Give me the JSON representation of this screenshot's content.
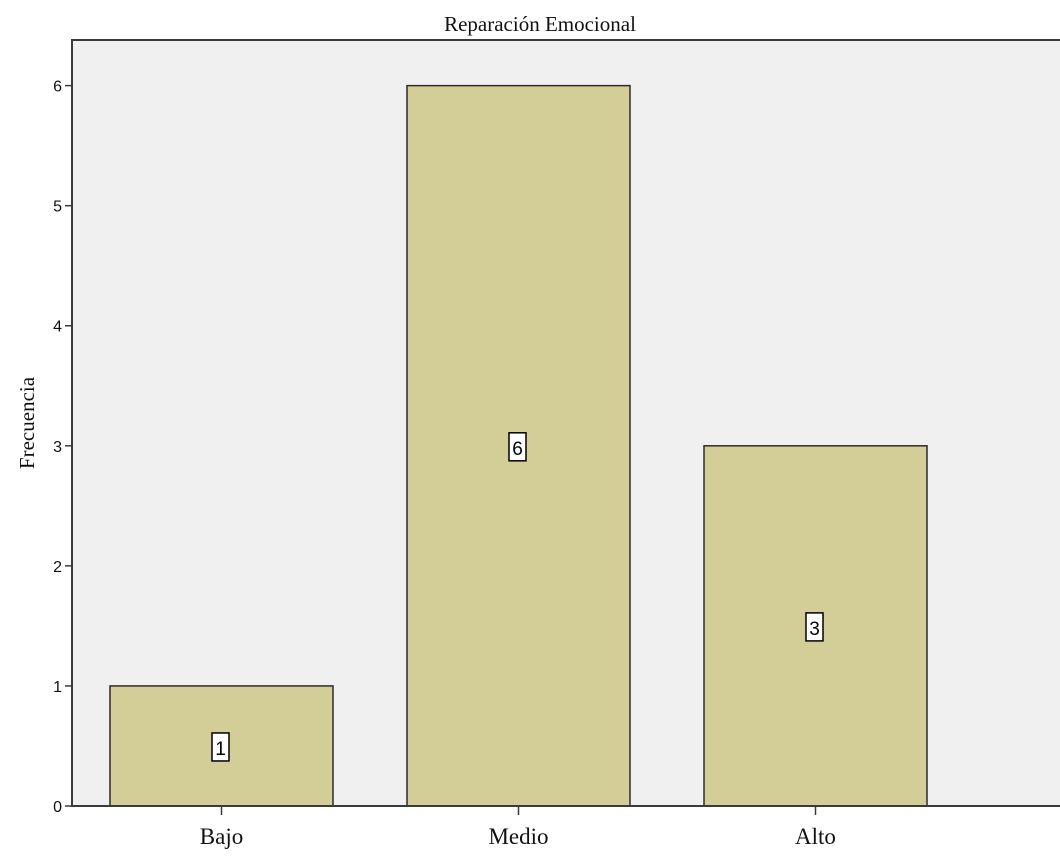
{
  "chart_data": {
    "type": "bar",
    "title": "Reparación  Emocional",
    "xlabel": "",
    "ylabel": "Frecuencia",
    "categories": [
      "Bajo",
      "Medio",
      "Alto"
    ],
    "values": [
      1,
      6,
      3
    ],
    "data_labels": [
      "1",
      "6",
      "3"
    ],
    "yticks": [
      "0",
      "1",
      "2",
      "3",
      "4",
      "5",
      "6"
    ],
    "ylim": [
      0,
      6.38
    ],
    "grid": false,
    "legend": "none",
    "colors": {
      "bar_fill": "#d3ce98",
      "bar_stroke": "#2b2b2b",
      "plot_bg": "#f0f0f0",
      "frame": "#3a3a3a",
      "label_box_fill": "#ffffff",
      "label_box_stroke": "#000000"
    }
  }
}
